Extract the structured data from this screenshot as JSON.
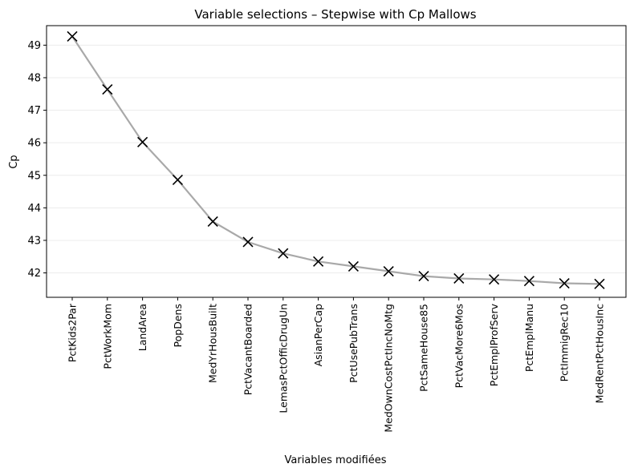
{
  "chart_data": {
    "type": "line",
    "title": "Variable selections – Stepwise with Cp Mallows",
    "xlabel": "Variables modifiées",
    "ylabel": "Cp",
    "categories": [
      "PctKids2Par",
      "PctWorkMom",
      "LandArea",
      "PopDens",
      "MedYrHousBuilt",
      "PctVacantBoarded",
      "LemasPctOfficDrugUn",
      "AsianPerCap",
      "PctUsePubTrans",
      "MedOwnCostPctIncNoMtg",
      "PctSameHouse85",
      "PctVacMore6Mos",
      "PctEmplProfServ",
      "PctEmplManu",
      "PctImmigRec10",
      "MedRentPctHousInc"
    ],
    "values": [
      49.27,
      47.64,
      46.02,
      44.86,
      43.58,
      42.95,
      42.6,
      42.35,
      42.2,
      42.05,
      41.9,
      41.83,
      41.8,
      41.75,
      41.68,
      41.66
    ],
    "yticks": [
      42,
      43,
      44,
      45,
      46,
      47,
      48,
      49
    ],
    "ylim": [
      41.25,
      49.6
    ],
    "grid": "horizontal",
    "line_color": "#a9a9a9",
    "marker": "x",
    "marker_color": "#000000"
  }
}
